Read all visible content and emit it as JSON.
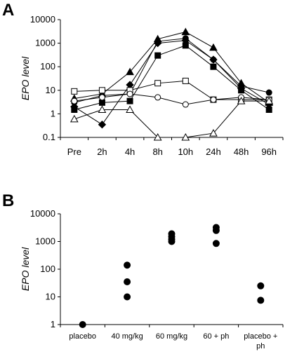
{
  "chart_data": [
    {
      "panel": "A",
      "type": "line",
      "ylabel": "EPO level",
      "yscale": "log",
      "ylim": [
        0.1,
        10000
      ],
      "yticks": [
        "0.1",
        "1",
        "10",
        "100",
        "1000",
        "10000"
      ],
      "grid": false,
      "legend": "none",
      "categories": [
        "Pre",
        "2h",
        "4h",
        "8h",
        "10h",
        "24h",
        "48h",
        "96h"
      ],
      "series": [
        {
          "marker": "triangle-filled",
          "values": [
            4.5,
            7,
            60,
            1500,
            3000,
            650,
            20,
            3
          ]
        },
        {
          "marker": "circle-filled",
          "values": [
            3,
            6,
            7,
            1200,
            1600,
            200,
            15,
            8
          ]
        },
        {
          "marker": "diamond-filled",
          "values": [
            2,
            0.35,
            17,
            1000,
            1300,
            200,
            12,
            2.5
          ]
        },
        {
          "marker": "square-filled",
          "values": [
            1.5,
            3,
            3.5,
            300,
            800,
            100,
            10,
            1.5
          ]
        },
        {
          "marker": "square-open",
          "values": [
            9,
            10,
            10,
            20,
            25,
            4,
            4,
            4
          ]
        },
        {
          "marker": "circle-open",
          "values": [
            3.5,
            5,
            7,
            5,
            2.5,
            4,
            5,
            4
          ]
        },
        {
          "marker": "triangle-open",
          "values": [
            0.6,
            1.5,
            1.5,
            0.1,
            0.1,
            0.15,
            3.5,
            3.5
          ]
        }
      ]
    },
    {
      "panel": "B",
      "type": "scatter",
      "ylabel": "EPO level",
      "yscale": "log",
      "ylim": [
        1,
        10000
      ],
      "yticks": [
        "1",
        "10",
        "100",
        "1000",
        "10000"
      ],
      "grid": false,
      "legend": "none",
      "categories": [
        [
          "placebo"
        ],
        [
          "40 mg/kg"
        ],
        [
          "60 mg/kg"
        ],
        [
          "60 + ph"
        ],
        [
          "placebo +",
          "ph"
        ]
      ],
      "points": [
        {
          "category": 0,
          "y": 1
        },
        {
          "category": 1,
          "y": 140
        },
        {
          "category": 1,
          "y": 35
        },
        {
          "category": 1,
          "y": 10
        },
        {
          "category": 2,
          "y": 1900
        },
        {
          "category": 2,
          "y": 1500
        },
        {
          "category": 2,
          "y": 1200
        },
        {
          "category": 2,
          "y": 1000
        },
        {
          "category": 3,
          "y": 3200
        },
        {
          "category": 3,
          "y": 2500
        },
        {
          "category": 3,
          "y": 850
        },
        {
          "category": 4,
          "y": 25
        },
        {
          "category": 4,
          "y": 7.5
        }
      ]
    }
  ]
}
